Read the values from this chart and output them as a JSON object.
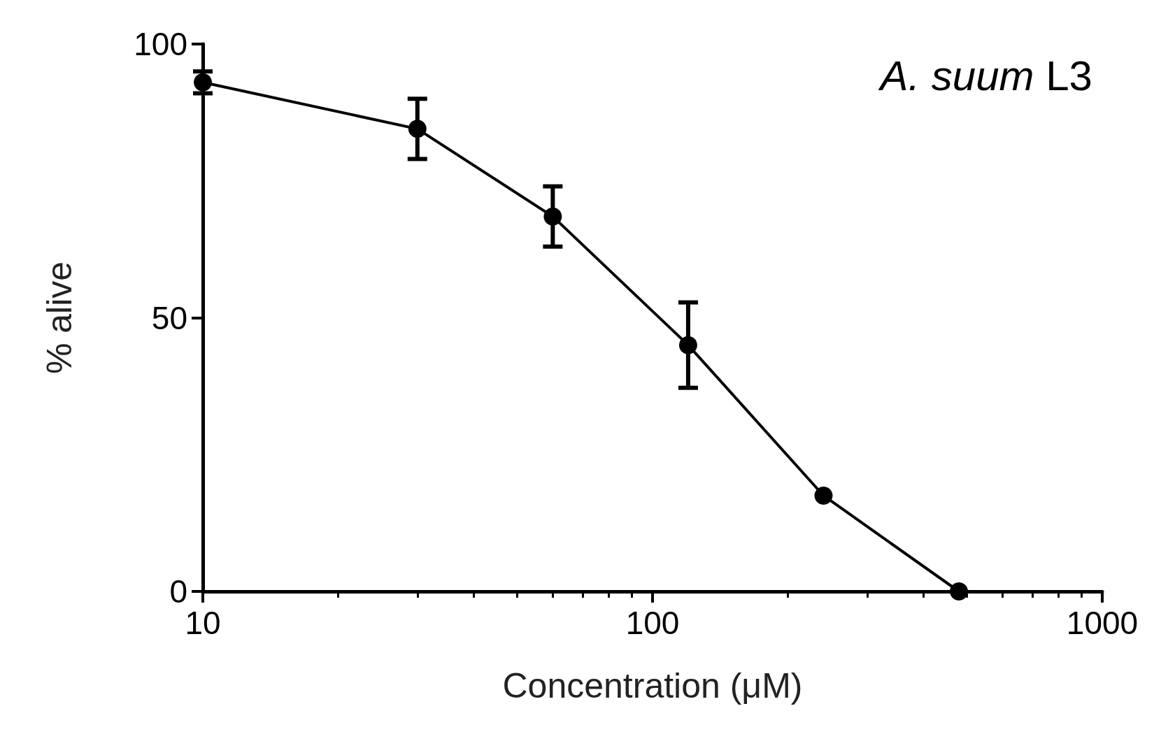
{
  "chart_data": {
    "type": "line",
    "title": "A. suum L3",
    "xlabel": "Concentration (μM)",
    "ylabel": "% alive",
    "x": [
      10,
      30,
      60,
      120,
      240,
      480
    ],
    "series": [
      {
        "color": "#000000",
        "values": [
          93,
          84.5,
          68.5,
          45,
          17.5,
          0
        ],
        "errors": [
          2,
          5.5,
          5.5,
          7.8,
          null,
          null
        ]
      }
    ],
    "log": "x",
    "xlim": [
      10,
      1000
    ],
    "xticks": [
      10,
      100,
      1000
    ],
    "ylim": [
      0,
      100
    ],
    "yticks": [
      0,
      50,
      100
    ],
    "marker": "circle",
    "line_style": "solid",
    "grid": false
  }
}
